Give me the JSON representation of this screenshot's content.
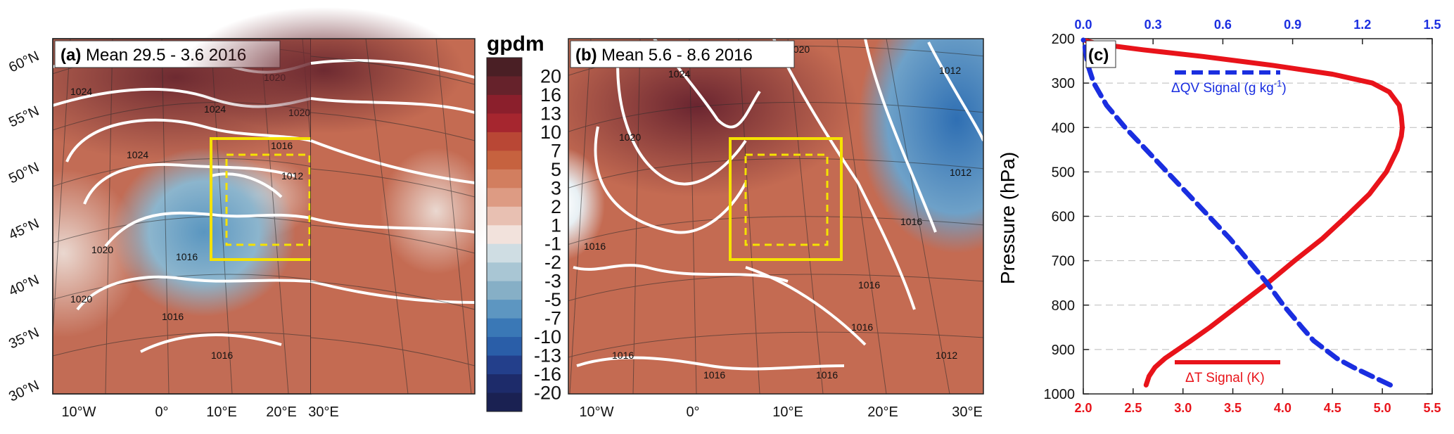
{
  "chart_data": [
    {
      "type": "heatmap",
      "panel_label": "(a)",
      "title": "Mean 29.5 - 3.6 2016",
      "lat_labels": [
        "60°N",
        "55°N",
        "50°N",
        "45°N",
        "40°N",
        "35°N",
        "30°N"
      ],
      "lon_labels": [
        "10°W",
        "0°",
        "10°E",
        "20°E",
        "30°E"
      ],
      "isobar_labels": [
        "1024",
        "1024",
        "1024",
        "1020",
        "1020",
        "1020",
        "1020",
        "1016",
        "1016",
        "1016",
        "1016",
        "1016",
        "1012",
        "1012",
        "1012",
        "1012"
      ]
    },
    {
      "type": "heatmap",
      "panel_label": "(b)",
      "title": "Mean 5.6 - 8.6 2016",
      "lon_labels": [
        "10°W",
        "0°",
        "10°E",
        "20°E",
        "30°E"
      ],
      "isobar_labels": [
        "1024",
        "1020",
        "1020",
        "1016",
        "1016",
        "1016",
        "1016",
        "1016",
        "1012",
        "1012",
        "1012",
        "1016",
        "1016"
      ]
    },
    {
      "type": "colorbar",
      "unit": "gpdm",
      "levels": [
        "20",
        "16",
        "13",
        "10",
        "7",
        "5",
        "3",
        "2",
        "1",
        "-1",
        "-2",
        "-3",
        "-5",
        "-7",
        "-10",
        "-13",
        "-16",
        "-20"
      ],
      "colors": [
        "#4a1f25",
        "#66222b",
        "#8b1f2c",
        "#a6262f",
        "#b94735",
        "#c6623f",
        "#d27e5f",
        "#dd9b83",
        "#e8c0b2",
        "#f2e2dc",
        "#cfdde3",
        "#a9c6d4",
        "#86afc6",
        "#5d96c1",
        "#3a78b6",
        "#2a5ea8",
        "#233f8b",
        "#1d2b6a",
        "#1a2152"
      ]
    },
    {
      "type": "line",
      "panel_label": "(c)",
      "ylabel": "Pressure (hPa)",
      "ylim": [
        1000,
        200
      ],
      "yticks": [
        200,
        300,
        400,
        500,
        600,
        700,
        800,
        900,
        1000
      ],
      "xbottom": {
        "range": [
          2.0,
          5.5
        ],
        "ticks": [
          "2.0",
          "2.5",
          "3.0",
          "3.5",
          "4.0",
          "4.5",
          "5.0",
          "5.5"
        ],
        "color": "#e8131a"
      },
      "xtop": {
        "range": [
          0.0,
          1.5
        ],
        "ticks": [
          "0.0",
          "0.3",
          "0.6",
          "0.9",
          "1.2",
          "1.5"
        ],
        "color": "#1a2ee0"
      },
      "grid": "horizontal dashed",
      "series": [
        {
          "name": "ΔT Signal (K)",
          "axis": "bottom",
          "color": "#e8131a",
          "style": "solid",
          "pressure": [
            980,
            960,
            940,
            920,
            900,
            880,
            850,
            800,
            750,
            700,
            650,
            600,
            550,
            500,
            450,
            420,
            400,
            375,
            350,
            320,
            300,
            280,
            260,
            240,
            225,
            212,
            205
          ],
          "values": [
            2.63,
            2.66,
            2.72,
            2.82,
            2.95,
            3.08,
            3.27,
            3.56,
            3.85,
            4.12,
            4.4,
            4.64,
            4.87,
            5.04,
            5.15,
            5.19,
            5.2,
            5.19,
            5.17,
            5.07,
            4.9,
            4.5,
            3.9,
            3.2,
            2.6,
            2.15,
            2.03
          ]
        },
        {
          "name": "ΔQV Signal (g kg-1)",
          "axis": "top",
          "color": "#1a2ee0",
          "style": "dashed",
          "pressure": [
            980,
            960,
            940,
            920,
            900,
            880,
            850,
            800,
            750,
            700,
            650,
            600,
            550,
            500,
            450,
            400,
            350,
            300,
            260,
            230,
            210,
            203
          ],
          "values": [
            1.32,
            1.24,
            1.16,
            1.09,
            1.04,
            0.99,
            0.94,
            0.86,
            0.79,
            0.71,
            0.63,
            0.54,
            0.45,
            0.36,
            0.27,
            0.18,
            0.1,
            0.045,
            0.02,
            0.01,
            0.005,
            0.0
          ]
        }
      ],
      "legend_labels": {
        "qv": "ΔQV Signal (g kg",
        "qv_sup": "-1",
        "qv_end": ")",
        "t": "ΔT Signal (K)"
      }
    }
  ]
}
